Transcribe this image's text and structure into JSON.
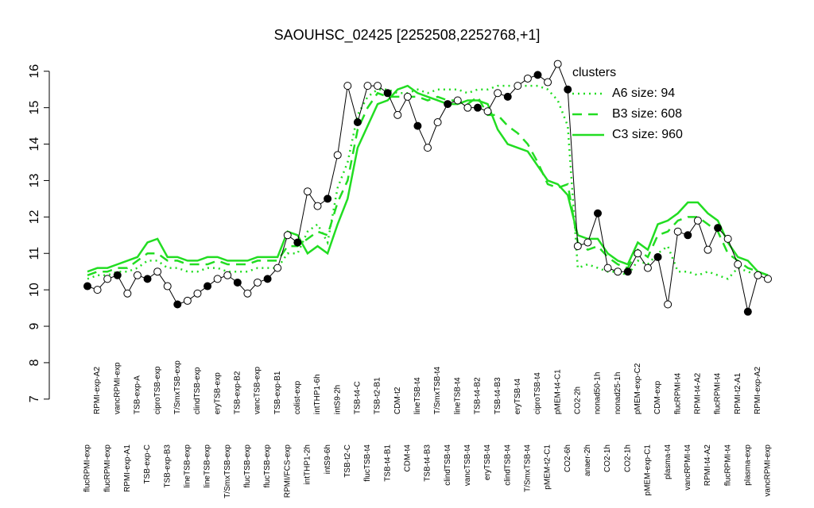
{
  "chart_data": {
    "type": "line",
    "title": "SAOUHSC_02425 [2252508,2252768,+1]",
    "legend_title": "clusters",
    "legend_position": "top-right",
    "legend_color": "#22dd22",
    "ylim": [
      6.8,
      16.3
    ],
    "yticks": [
      7,
      8,
      9,
      10,
      11,
      12,
      13,
      14,
      15,
      16
    ],
    "categories": [
      "flucRPMI-exp",
      "RPMI-exp-A2",
      "flucRPMI-exp",
      "vancRPMI-exp",
      "RPMI-exp-A1",
      "TSB-exp-A",
      "TSB-exp-C",
      "ciproTSB-exp",
      "TSB-exp-B3",
      "T/SmxTSB-exp",
      "lineTSB-exp",
      "clindTSB-exp",
      "lineTSB-exp",
      "eryTSB-exp",
      "T/SmxTSB-exp",
      "TSB-exp-B2",
      "flucTSB-exp",
      "vancTSB-exp",
      "flucTSB-exp",
      "TSB-exp-B1",
      "RPMI/FCS-exp",
      "colist-exp",
      "intTHP1-2h",
      "intTHP1-6h",
      "intS9-6h",
      "intS9-2h",
      "TSB-t2-C",
      "TSB-t4-C",
      "flucTSB-t4",
      "TSB-t2-B1",
      "TSB-t4-B1",
      "CDM-t2",
      "CDM-t4",
      "lineTSB-t4",
      "TSB-t4-B3",
      "T/SmxTSB-t4",
      "clindTSB-t4",
      "lineTSB-t4",
      "vancTSB-t4",
      "TSB-t4-B2",
      "eryTSB-t4",
      "TSB-t4-B3",
      "clindTSB-t4",
      "eryTSB-t4",
      "T/SmxTSB-t4",
      "ciproTSB-t4",
      "pMEM-t2-C1",
      "pMEM-t4-C1",
      "CO2-6h",
      "CO2-2h",
      "anaer-2h",
      "nonad50-1h",
      "CO2-1h",
      "nonad25-1h",
      "CO2-1h",
      "pMEM-exp-C2",
      "pMEM-exp-C1",
      "CDM-exp",
      "plasma-t4",
      "flucRPMI-t4",
      "vancRPMI-t4",
      "RPMI-t4-A2",
      "RPMI-t4-A2",
      "flucRPMI-t4",
      "flucRPMI-t4",
      "RPMI-t2-A1",
      "plasma-exp",
      "RPMI-exp-A2",
      "vancRPMI-exp"
    ],
    "values": [
      10.1,
      10.0,
      10.3,
      10.4,
      9.9,
      10.4,
      10.3,
      10.5,
      10.1,
      9.6,
      9.7,
      9.9,
      10.1,
      10.3,
      10.4,
      10.2,
      9.9,
      10.2,
      10.3,
      10.6,
      11.5,
      11.3,
      12.7,
      12.3,
      12.5,
      13.7,
      15.6,
      14.6,
      15.6,
      15.6,
      15.4,
      14.8,
      15.3,
      14.5,
      13.9,
      14.6,
      15.1,
      15.2,
      15.0,
      15.0,
      14.9,
      15.4,
      15.3,
      15.6,
      15.8,
      15.9,
      15.7,
      16.2,
      15.5,
      11.2,
      11.3,
      12.1,
      10.6,
      10.5,
      10.5,
      11.0,
      10.6,
      10.9,
      9.6,
      11.6,
      11.5,
      11.9,
      11.1,
      11.7,
      11.4,
      10.7,
      9.4,
      10.4,
      10.3
    ],
    "color": "#000000",
    "series": [
      {
        "name": "A6 size: 94",
        "color": "#22dd22",
        "linestyle": "dotted",
        "values": [
          10.3,
          10.4,
          10.4,
          10.5,
          10.5,
          10.6,
          10.8,
          10.8,
          10.6,
          10.6,
          10.5,
          10.5,
          10.6,
          10.6,
          10.5,
          10.5,
          10.5,
          10.6,
          10.6,
          10.6,
          11.0,
          11.0,
          11.6,
          11.8,
          11.3,
          12.8,
          13.5,
          14.8,
          15.3,
          15.5,
          15.5,
          15.4,
          15.4,
          15.5,
          15.4,
          15.5,
          15.5,
          15.5,
          15.4,
          15.5,
          15.5,
          15.6,
          15.6,
          15.6,
          15.6,
          15.6,
          15.5,
          15.2,
          14.5,
          10.6,
          10.7,
          10.6,
          10.5,
          10.5,
          10.4,
          10.8,
          10.7,
          11.0,
          11.2,
          10.5,
          10.5,
          10.4,
          10.5,
          10.4,
          10.3,
          10.6,
          10.5,
          10.4,
          10.3
        ]
      },
      {
        "name": "B3 size: 608",
        "color": "#22dd22",
        "linestyle": "dashed",
        "values": [
          10.4,
          10.5,
          10.5,
          10.6,
          10.6,
          10.8,
          11.0,
          11.0,
          10.8,
          10.8,
          10.7,
          10.7,
          10.7,
          10.8,
          10.7,
          10.7,
          10.7,
          10.8,
          10.8,
          10.8,
          11.2,
          11.2,
          11.4,
          11.6,
          11.5,
          12.4,
          13.0,
          14.4,
          15.0,
          15.4,
          15.3,
          15.3,
          15.3,
          15.3,
          15.2,
          15.3,
          15.2,
          15.2,
          15.1,
          15.3,
          14.8,
          14.8,
          14.5,
          14.3,
          14.0,
          13.5,
          12.9,
          12.8,
          12.9,
          11.3,
          11.1,
          11.2,
          10.9,
          10.7,
          10.6,
          11.1,
          10.9,
          11.5,
          11.6,
          11.9,
          12.0,
          12.0,
          11.8,
          11.6,
          11.0,
          10.8,
          10.6,
          10.5,
          10.4
        ]
      },
      {
        "name": "C3 size: 960",
        "color": "#22dd22",
        "linestyle": "solid",
        "values": [
          10.5,
          10.6,
          10.6,
          10.7,
          10.8,
          10.9,
          11.3,
          11.4,
          10.9,
          10.9,
          10.8,
          10.8,
          10.9,
          10.9,
          10.8,
          10.8,
          10.8,
          10.9,
          10.9,
          10.9,
          11.6,
          11.5,
          11.0,
          11.2,
          11.0,
          11.8,
          12.5,
          13.9,
          14.5,
          15.1,
          15.2,
          15.5,
          15.6,
          15.4,
          15.3,
          15.2,
          15.1,
          15.1,
          15.2,
          15.2,
          15.1,
          14.4,
          14.0,
          13.9,
          13.8,
          13.4,
          13.0,
          12.9,
          12.6,
          11.5,
          11.4,
          11.4,
          11.0,
          10.8,
          10.7,
          11.3,
          11.1,
          11.8,
          11.9,
          12.1,
          12.4,
          12.4,
          12.1,
          11.9,
          11.3,
          10.9,
          10.8,
          10.5,
          10.4
        ]
      }
    ]
  }
}
